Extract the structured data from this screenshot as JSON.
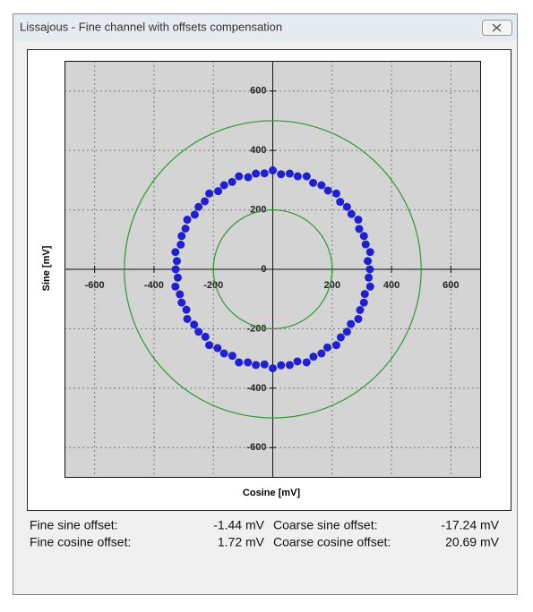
{
  "window": {
    "title": "Lissajous - Fine channel with offsets compensation"
  },
  "chart_data": {
    "type": "scatter",
    "xlabel": "Cosine [mV]",
    "ylabel": "Sine [mV]",
    "x": [
      327,
      320,
      328,
      313,
      307,
      291,
      288,
      265,
      250,
      227,
      214,
      186,
      164,
      136,
      114,
      84,
      57,
      28,
      0,
      -28,
      -57,
      -83,
      -114,
      -137,
      -164,
      -184,
      -214,
      -229,
      -250,
      -263,
      -288,
      -294,
      -307,
      -310,
      -328,
      -323,
      -327,
      -320,
      -328,
      -313,
      -307,
      -291,
      -288,
      -265,
      -250,
      -227,
      -214,
      -186,
      -164,
      -136,
      -114,
      -84,
      -57,
      -28,
      0,
      28,
      57,
      83,
      114,
      137,
      164,
      184,
      214,
      229,
      250,
      263,
      288,
      294,
      307,
      310,
      328,
      323
    ],
    "y": [
      0,
      28,
      58,
      84,
      112,
      136,
      167,
      186,
      210,
      227,
      255,
      265,
      283,
      291,
      313,
      313,
      322,
      320,
      333,
      323,
      322,
      310,
      313,
      294,
      283,
      263,
      255,
      229,
      210,
      184,
      167,
      137,
      112,
      83,
      58,
      28,
      0,
      -28,
      -58,
      -84,
      -112,
      -136,
      -167,
      -186,
      -210,
      -227,
      -255,
      -265,
      -283,
      -291,
      -313,
      -313,
      -322,
      -320,
      -333,
      -323,
      -322,
      -310,
      -313,
      -294,
      -283,
      -263,
      -255,
      -229,
      -210,
      -184,
      -167,
      -137,
      -112,
      -83,
      -58,
      -28
    ],
    "color": "#1f1fd6",
    "xlim": [
      -700,
      700
    ],
    "ylim": [
      -700,
      700
    ],
    "xticks": [
      -600,
      -400,
      -200,
      200,
      400,
      600
    ],
    "yticks": [
      -600,
      -400,
      -200,
      0,
      200,
      400,
      600
    ],
    "grid": true,
    "reference_circles": {
      "radii": [
        200,
        500
      ],
      "color": "#2e9a2e"
    }
  },
  "readouts": [
    {
      "label": "Fine sine offset:",
      "value": "-1.44 mV"
    },
    {
      "label": "Coarse sine offset:",
      "value": "-17.24 mV"
    },
    {
      "label": "Fine cosine offset:",
      "value": "1.72 mV"
    },
    {
      "label": "Coarse cosine offset:",
      "value": "20.69 mV"
    }
  ]
}
